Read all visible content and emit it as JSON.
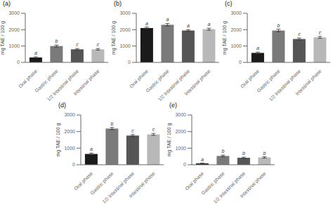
{
  "chart_data": [
    {
      "type": "bar",
      "title": "(a)",
      "ylabel": "mg TAE / 100 g",
      "categories": [
        "Oral phase",
        "Gastric phase",
        "1/2 Intestinal phase",
        "Intestinal phase"
      ],
      "values": [
        300,
        1000,
        800,
        800
      ],
      "errors": [
        40,
        60,
        50,
        50
      ],
      "annotations": [
        "a",
        "b",
        "c",
        "c"
      ],
      "colors": [
        "#1a1a1a",
        "#7a7a7a",
        "#555555",
        "#b8b8b8"
      ],
      "ylim": [
        0,
        3000
      ],
      "yticks": [
        0,
        1000,
        2000,
        3000
      ],
      "grid": false
    },
    {
      "type": "bar",
      "title": "(b)",
      "ylabel": "mg TAE / 100 g",
      "categories": [
        "Oral phase",
        "Gastric phase",
        "1/2 Intestinal phase",
        "Intestinal phase"
      ],
      "values": [
        2100,
        2300,
        1950,
        2030
      ],
      "errors": [
        60,
        80,
        50,
        60
      ],
      "annotations": [
        "a",
        "a",
        "a",
        "a"
      ],
      "colors": [
        "#1a1a1a",
        "#7a7a7a",
        "#555555",
        "#b8b8b8"
      ],
      "ylim": [
        0,
        3000
      ],
      "yticks": [
        0,
        1000,
        2000,
        3000
      ],
      "grid": false
    },
    {
      "type": "bar",
      "title": "(c)",
      "ylabel": "mg TAE / 100 g",
      "categories": [
        "Oral phase",
        "Gastric phase",
        "1/2 Intestinal phase",
        "Intestinal phase"
      ],
      "values": [
        580,
        1950,
        1430,
        1530
      ],
      "errors": [
        50,
        80,
        60,
        60
      ],
      "annotations": [
        "a",
        "b",
        "c",
        "c"
      ],
      "colors": [
        "#1a1a1a",
        "#7a7a7a",
        "#555555",
        "#b8b8b8"
      ],
      "ylim": [
        0,
        3000
      ],
      "yticks": [
        0,
        1000,
        2000,
        3000
      ],
      "grid": false
    },
    {
      "type": "bar",
      "title": "(d)",
      "ylabel": "mg TAE / 100 g",
      "categories": [
        "Oral phase",
        "Gastric phase",
        "1/2 Intestinal phase",
        "Intestinal phase"
      ],
      "values": [
        650,
        2180,
        1760,
        1830
      ],
      "errors": [
        50,
        70,
        60,
        60
      ],
      "annotations": [
        "a",
        "b",
        "c",
        "c"
      ],
      "colors": [
        "#1a1a1a",
        "#7a7a7a",
        "#555555",
        "#b8b8b8"
      ],
      "ylim": [
        0,
        3000
      ],
      "yticks": [
        0,
        1000,
        2000,
        3000
      ],
      "grid": false
    },
    {
      "type": "bar",
      "title": "(e)",
      "ylabel": "mg TAE / 100 g",
      "categories": [
        "Oral phase",
        "Gastric phase",
        "1/2 Intestinal phase",
        "Intestinal phase"
      ],
      "values": [
        80,
        530,
        420,
        440
      ],
      "errors": [
        20,
        50,
        40,
        40
      ],
      "annotations": [
        "a",
        "b",
        "b",
        "b"
      ],
      "colors": [
        "#1a1a1a",
        "#7a7a7a",
        "#555555",
        "#b8b8b8"
      ],
      "ylim": [
        0,
        3000
      ],
      "yticks": [
        0,
        1000,
        2000,
        3000
      ],
      "grid": false
    }
  ]
}
